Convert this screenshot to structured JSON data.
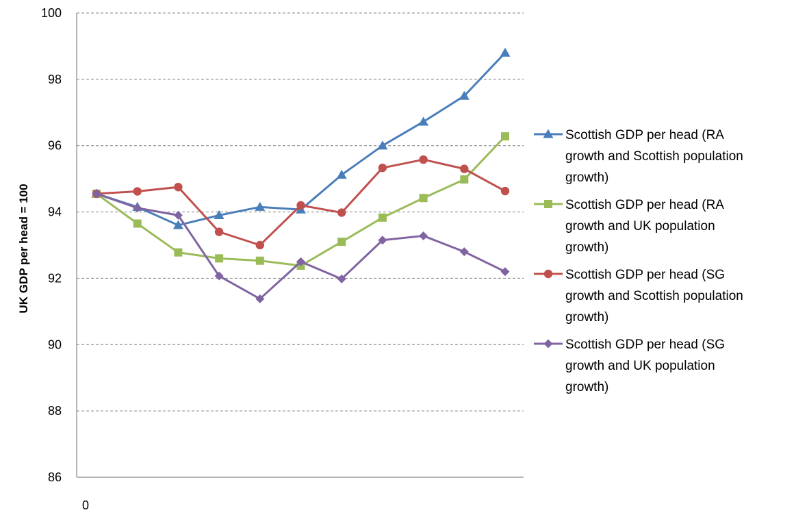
{
  "chart_data": {
    "type": "line",
    "title": "",
    "xlabel": "",
    "ylabel": "UK GDP  per head = 100",
    "x_tick_labels": [
      "0"
    ],
    "ylim": [
      86,
      100
    ],
    "y_ticks": [
      86,
      88,
      90,
      92,
      94,
      96,
      98,
      100
    ],
    "grid": true,
    "legend_position": "right",
    "series": [
      {
        "name": "Scottish GDP per head (RA growth and Scottish population growth)",
        "legend_lines": [
          "Scottish GDP per head (RA",
          "growth and Scottish population",
          "growth)"
        ],
        "color": "#4a7ebb",
        "marker": "triangle",
        "values": [
          94.55,
          94.15,
          93.6,
          93.9,
          94.15,
          94.07,
          95.12,
          96.0,
          96.72,
          97.5,
          98.8
        ]
      },
      {
        "name": "Scottish GDP per head (RA growth and UK population growth)",
        "legend_lines": [
          "Scottish GDP per head (RA",
          "growth and UK population",
          "growth)"
        ],
        "color": "#9bbb59",
        "marker": "square",
        "values": [
          94.55,
          93.65,
          92.78,
          92.6,
          92.53,
          92.38,
          93.1,
          93.83,
          94.42,
          94.98,
          96.28
        ]
      },
      {
        "name": "Scottish GDP per head (SG growth and Scottish population growth)",
        "legend_lines": [
          "Scottish GDP per head (SG",
          "growth and Scottish population",
          "growth)"
        ],
        "color": "#c0504d",
        "marker": "circle",
        "values": [
          94.55,
          94.62,
          94.75,
          93.4,
          93.0,
          94.2,
          93.98,
          95.33,
          95.58,
          95.3,
          94.63
        ]
      },
      {
        "name": "Scottish GDP per head (SG growth and UK population growth)",
        "legend_lines": [
          "Scottish GDP per head (SG",
          "growth and UK population",
          "growth)"
        ],
        "color": "#8064a2",
        "marker": "diamond",
        "values": [
          94.55,
          94.12,
          93.9,
          92.07,
          91.38,
          92.5,
          91.98,
          93.15,
          93.28,
          92.8,
          92.2
        ]
      }
    ]
  }
}
